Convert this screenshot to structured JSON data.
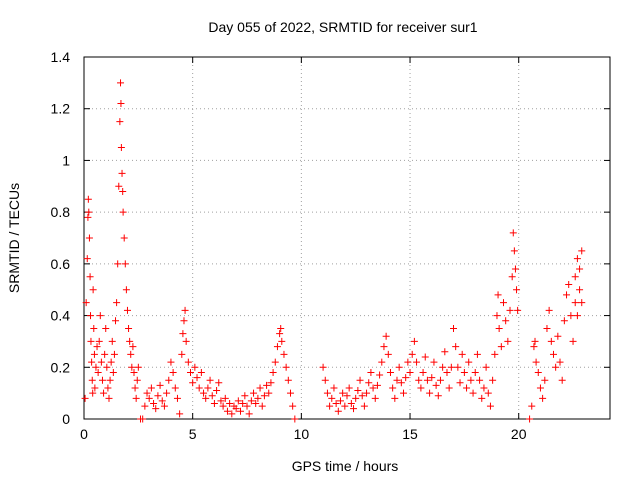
{
  "chart_data": {
    "type": "scatter",
    "title": "Day 055 of 2022, SRMTID for receiver sur1",
    "xlabel": "GPS time / hours",
    "ylabel": "SRMTID / TECUs",
    "xlim": [
      0,
      24.2
    ],
    "ylim": [
      0,
      1.4
    ],
    "xticks": [
      0,
      5,
      10,
      15,
      20
    ],
    "xtick_labels": [
      "0",
      "5",
      "10",
      "15",
      "20"
    ],
    "yticks": [
      0,
      0.2,
      0.4,
      0.6,
      0.8,
      1.0,
      1.2,
      1.4
    ],
    "ytick_labels": [
      "0",
      "0.2",
      "0.4",
      "0.6",
      "0.8",
      "1",
      "1.2",
      "1.4"
    ],
    "grid": true,
    "marker": "+",
    "color": "#ff0000",
    "series": [
      {
        "name": "sur1",
        "points": [
          [
            0.05,
            0.08
          ],
          [
            0.1,
            0.45
          ],
          [
            0.15,
            0.62
          ],
          [
            0.18,
            0.78
          ],
          [
            0.2,
            0.85
          ],
          [
            0.22,
            0.8
          ],
          [
            0.25,
            0.7
          ],
          [
            0.28,
            0.55
          ],
          [
            0.3,
            0.4
          ],
          [
            0.32,
            0.3
          ],
          [
            0.35,
            0.22
          ],
          [
            0.38,
            0.15
          ],
          [
            0.4,
            0.1
          ],
          [
            0.42,
            0.5
          ],
          [
            0.45,
            0.35
          ],
          [
            0.48,
            0.25
          ],
          [
            0.5,
            0.12
          ],
          [
            0.55,
            0.2
          ],
          [
            0.6,
            0.28
          ],
          [
            0.65,
            0.18
          ],
          [
            0.7,
            0.3
          ],
          [
            0.75,
            0.4
          ],
          [
            0.8,
            0.22
          ],
          [
            0.85,
            0.15
          ],
          [
            0.9,
            0.1
          ],
          [
            0.95,
            0.25
          ],
          [
            1.0,
            0.35
          ],
          [
            1.05,
            0.2
          ],
          [
            1.1,
            0.12
          ],
          [
            1.15,
            0.08
          ],
          [
            1.2,
            0.15
          ],
          [
            1.25,
            0.22
          ],
          [
            1.3,
            0.3
          ],
          [
            1.35,
            0.18
          ],
          [
            1.4,
            0.25
          ],
          [
            1.45,
            0.38
          ],
          [
            1.5,
            0.45
          ],
          [
            1.55,
            0.6
          ],
          [
            1.6,
            0.9
          ],
          [
            1.65,
            1.15
          ],
          [
            1.68,
            1.3
          ],
          [
            1.7,
            1.22
          ],
          [
            1.72,
            1.05
          ],
          [
            1.75,
            0.95
          ],
          [
            1.78,
            0.88
          ],
          [
            1.8,
            0.8
          ],
          [
            1.85,
            0.7
          ],
          [
            1.9,
            0.6
          ],
          [
            1.95,
            0.5
          ],
          [
            2.0,
            0.42
          ],
          [
            2.05,
            0.35
          ],
          [
            2.1,
            0.3
          ],
          [
            2.15,
            0.25
          ],
          [
            2.2,
            0.2
          ],
          [
            2.25,
            0.28
          ],
          [
            2.3,
            0.18
          ],
          [
            2.35,
            0.12
          ],
          [
            2.4,
            0.08
          ],
          [
            2.45,
            0.15
          ],
          [
            2.5,
            0.2
          ],
          [
            2.6,
            0.0
          ],
          [
            2.7,
            0.0
          ],
          [
            2.8,
            0.05
          ],
          [
            2.9,
            0.1
          ],
          [
            3.0,
            0.08
          ],
          [
            3.1,
            0.12
          ],
          [
            3.2,
            0.06
          ],
          [
            3.3,
            0.04
          ],
          [
            3.4,
            0.09
          ],
          [
            3.5,
            0.13
          ],
          [
            3.6,
            0.07
          ],
          [
            3.7,
            0.05
          ],
          [
            3.8,
            0.1
          ],
          [
            3.9,
            0.15
          ],
          [
            4.0,
            0.22
          ],
          [
            4.1,
            0.18
          ],
          [
            4.2,
            0.12
          ],
          [
            4.3,
            0.08
          ],
          [
            4.4,
            0.02
          ],
          [
            4.5,
            0.25
          ],
          [
            4.55,
            0.33
          ],
          [
            4.6,
            0.38
          ],
          [
            4.65,
            0.42
          ],
          [
            4.7,
            0.3
          ],
          [
            4.8,
            0.22
          ],
          [
            4.9,
            0.18
          ],
          [
            5.0,
            0.14
          ],
          [
            5.1,
            0.2
          ],
          [
            5.2,
            0.16
          ],
          [
            5.3,
            0.12
          ],
          [
            5.4,
            0.18
          ],
          [
            5.5,
            0.1
          ],
          [
            5.6,
            0.08
          ],
          [
            5.7,
            0.12
          ],
          [
            5.8,
            0.15
          ],
          [
            5.9,
            0.09
          ],
          [
            6.0,
            0.06
          ],
          [
            6.1,
            0.11
          ],
          [
            6.2,
            0.14
          ],
          [
            6.3,
            0.07
          ],
          [
            6.4,
            0.05
          ],
          [
            6.5,
            0.08
          ],
          [
            6.6,
            0.03
          ],
          [
            6.7,
            0.06
          ],
          [
            6.8,
            0.02
          ],
          [
            6.9,
            0.05
          ],
          [
            7.0,
            0.04
          ],
          [
            7.1,
            0.07
          ],
          [
            7.2,
            0.03
          ],
          [
            7.3,
            0.06
          ],
          [
            7.4,
            0.09
          ],
          [
            7.5,
            0.05
          ],
          [
            7.6,
            0.02
          ],
          [
            7.7,
            0.07
          ],
          [
            7.8,
            0.1
          ],
          [
            7.9,
            0.06
          ],
          [
            8.0,
            0.08
          ],
          [
            8.1,
            0.12
          ],
          [
            8.2,
            0.05
          ],
          [
            8.3,
            0.09
          ],
          [
            8.4,
            0.13
          ],
          [
            8.5,
            0.1
          ],
          [
            8.6,
            0.14
          ],
          [
            8.7,
            0.18
          ],
          [
            8.8,
            0.22
          ],
          [
            8.9,
            0.28
          ],
          [
            9.0,
            0.33
          ],
          [
            9.05,
            0.35
          ],
          [
            9.1,
            0.3
          ],
          [
            9.2,
            0.25
          ],
          [
            9.3,
            0.2
          ],
          [
            9.4,
            0.15
          ],
          [
            9.5,
            0.1
          ],
          [
            9.6,
            0.05
          ],
          [
            9.7,
            0.0
          ],
          [
            11.0,
            0.2
          ],
          [
            11.1,
            0.15
          ],
          [
            11.2,
            0.1
          ],
          [
            11.3,
            0.05
          ],
          [
            11.4,
            0.08
          ],
          [
            11.5,
            0.12
          ],
          [
            11.6,
            0.06
          ],
          [
            11.7,
            0.03
          ],
          [
            11.8,
            0.07
          ],
          [
            11.9,
            0.1
          ],
          [
            12.0,
            0.05
          ],
          [
            12.1,
            0.09
          ],
          [
            12.2,
            0.12
          ],
          [
            12.3,
            0.06
          ],
          [
            12.4,
            0.04
          ],
          [
            12.5,
            0.08
          ],
          [
            12.6,
            0.11
          ],
          [
            12.7,
            0.15
          ],
          [
            12.8,
            0.09
          ],
          [
            12.9,
            0.05
          ],
          [
            13.0,
            0.1
          ],
          [
            13.1,
            0.14
          ],
          [
            13.2,
            0.18
          ],
          [
            13.3,
            0.12
          ],
          [
            13.4,
            0.08
          ],
          [
            13.5,
            0.13
          ],
          [
            13.6,
            0.17
          ],
          [
            13.7,
            0.22
          ],
          [
            13.8,
            0.28
          ],
          [
            13.9,
            0.32
          ],
          [
            14.0,
            0.25
          ],
          [
            14.1,
            0.18
          ],
          [
            14.2,
            0.12
          ],
          [
            14.3,
            0.08
          ],
          [
            14.4,
            0.15
          ],
          [
            14.5,
            0.2
          ],
          [
            14.6,
            0.14
          ],
          [
            14.7,
            0.1
          ],
          [
            14.8,
            0.16
          ],
          [
            14.9,
            0.22
          ],
          [
            15.0,
            0.18
          ],
          [
            15.1,
            0.25
          ],
          [
            15.2,
            0.3
          ],
          [
            15.3,
            0.22
          ],
          [
            15.4,
            0.15
          ],
          [
            15.5,
            0.12
          ],
          [
            15.6,
            0.18
          ],
          [
            15.7,
            0.24
          ],
          [
            15.8,
            0.15
          ],
          [
            15.9,
            0.1
          ],
          [
            16.0,
            0.16
          ],
          [
            16.1,
            0.22
          ],
          [
            16.2,
            0.13
          ],
          [
            16.3,
            0.09
          ],
          [
            16.4,
            0.15
          ],
          [
            16.5,
            0.2
          ],
          [
            16.6,
            0.26
          ],
          [
            16.7,
            0.18
          ],
          [
            16.8,
            0.12
          ],
          [
            16.9,
            0.2
          ],
          [
            17.0,
            0.35
          ],
          [
            17.1,
            0.28
          ],
          [
            17.2,
            0.2
          ],
          [
            17.3,
            0.14
          ],
          [
            17.4,
            0.25
          ],
          [
            17.5,
            0.18
          ],
          [
            17.6,
            0.12
          ],
          [
            17.7,
            0.22
          ],
          [
            17.8,
            0.15
          ],
          [
            17.9,
            0.1
          ],
          [
            18.0,
            0.18
          ],
          [
            18.1,
            0.25
          ],
          [
            18.2,
            0.15
          ],
          [
            18.3,
            0.08
          ],
          [
            18.4,
            0.12
          ],
          [
            18.5,
            0.2
          ],
          [
            18.6,
            0.1
          ],
          [
            18.7,
            0.05
          ],
          [
            18.8,
            0.15
          ],
          [
            18.9,
            0.25
          ],
          [
            19.0,
            0.4
          ],
          [
            19.05,
            0.48
          ],
          [
            19.1,
            0.35
          ],
          [
            19.2,
            0.28
          ],
          [
            19.3,
            0.45
          ],
          [
            19.4,
            0.38
          ],
          [
            19.5,
            0.3
          ],
          [
            19.6,
            0.42
          ],
          [
            19.7,
            0.55
          ],
          [
            19.75,
            0.72
          ],
          [
            19.8,
            0.65
          ],
          [
            19.85,
            0.58
          ],
          [
            19.9,
            0.5
          ],
          [
            19.95,
            0.42
          ],
          [
            20.5,
            0.0
          ],
          [
            20.6,
            0.05
          ],
          [
            20.7,
            0.28
          ],
          [
            20.75,
            0.3
          ],
          [
            20.8,
            0.22
          ],
          [
            20.9,
            0.18
          ],
          [
            21.0,
            0.12
          ],
          [
            21.1,
            0.08
          ],
          [
            21.2,
            0.15
          ],
          [
            21.3,
            0.35
          ],
          [
            21.4,
            0.42
          ],
          [
            21.5,
            0.3
          ],
          [
            21.6,
            0.25
          ],
          [
            21.7,
            0.2
          ],
          [
            21.8,
            0.32
          ],
          [
            21.9,
            0.22
          ],
          [
            22.0,
            0.15
          ],
          [
            22.1,
            0.38
          ],
          [
            22.2,
            0.48
          ],
          [
            22.3,
            0.52
          ],
          [
            22.4,
            0.4
          ],
          [
            22.5,
            0.3
          ],
          [
            22.6,
            0.55
          ],
          [
            22.7,
            0.62
          ],
          [
            22.8,
            0.58
          ],
          [
            22.9,
            0.65
          ],
          [
            22.6,
            0.45
          ],
          [
            22.7,
            0.4
          ],
          [
            22.8,
            0.5
          ],
          [
            22.9,
            0.45
          ]
        ]
      }
    ]
  }
}
